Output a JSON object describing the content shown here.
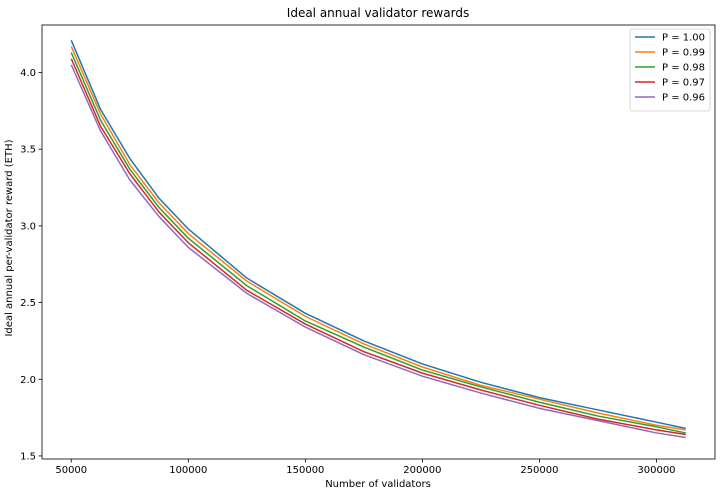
{
  "chart_data": {
    "type": "line",
    "title": "Ideal annual validator rewards",
    "xlabel": "Number of validators",
    "ylabel": "Ideal annual per-validator reward (ETH)",
    "xlim": [
      37500,
      325000
    ],
    "ylim": [
      1.48,
      4.31
    ],
    "x_ticks": [
      50000,
      100000,
      150000,
      200000,
      250000,
      300000
    ],
    "y_ticks": [
      1.5,
      2.0,
      2.5,
      3.0,
      3.5,
      4.0
    ],
    "x_tick_labels": [
      "50000",
      "100000",
      "150000",
      "200000",
      "250000",
      "300000"
    ],
    "y_tick_labels": [
      "1.5",
      "2.0",
      "2.5",
      "3.0",
      "3.5",
      "4.0"
    ],
    "x": [
      50000,
      62500,
      75000,
      87500,
      100000,
      125000,
      150000,
      175000,
      200000,
      225000,
      250000,
      275000,
      300000,
      312500
    ],
    "series": [
      {
        "name": "P = 1.00",
        "color": "#1f77b4",
        "values": [
          4.21,
          3.76,
          3.44,
          3.18,
          2.98,
          2.66,
          2.43,
          2.25,
          2.1,
          1.98,
          1.88,
          1.8,
          1.72,
          1.68
        ]
      },
      {
        "name": "P = 0.99",
        "color": "#ff7f0e",
        "values": [
          4.17,
          3.73,
          3.4,
          3.15,
          2.95,
          2.64,
          2.41,
          2.23,
          2.08,
          1.96,
          1.87,
          1.78,
          1.7,
          1.67
        ]
      },
      {
        "name": "P = 0.98",
        "color": "#2ca02c",
        "values": [
          4.13,
          3.69,
          3.37,
          3.12,
          2.92,
          2.61,
          2.38,
          2.21,
          2.06,
          1.95,
          1.85,
          1.76,
          1.69,
          1.65
        ]
      },
      {
        "name": "P = 0.97",
        "color": "#d62728",
        "values": [
          4.09,
          3.65,
          3.34,
          3.09,
          2.89,
          2.58,
          2.36,
          2.18,
          2.04,
          1.93,
          1.83,
          1.74,
          1.67,
          1.64
        ]
      },
      {
        "name": "P = 0.96",
        "color": "#9467bd",
        "values": [
          4.05,
          3.62,
          3.3,
          3.06,
          2.86,
          2.56,
          2.34,
          2.16,
          2.02,
          1.91,
          1.81,
          1.73,
          1.65,
          1.62
        ]
      }
    ],
    "grid": false,
    "legend_position": "top-right"
  }
}
